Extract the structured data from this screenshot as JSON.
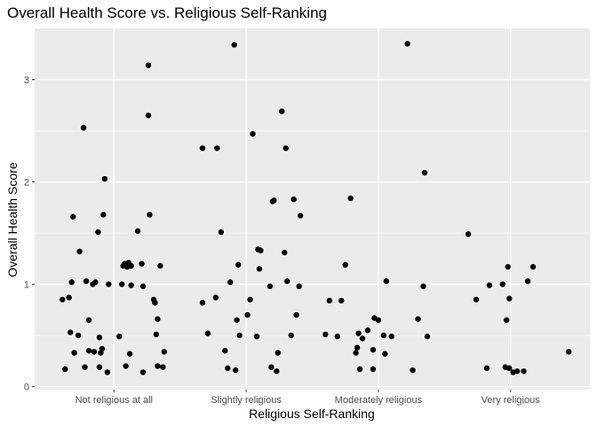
{
  "chart_data": {
    "type": "scatter",
    "title": "Overall Health Score vs. Religious Self-Ranking",
    "xlabel": "Religious Self-Ranking",
    "ylabel": "Overall Health Score",
    "categories": [
      "Not religious at all",
      "Slightly religious",
      "Moderately religious",
      "Very religious"
    ],
    "yticks": [
      0,
      1,
      2,
      3
    ],
    "ytick_labels": [
      "0",
      "1",
      "2",
      "3"
    ],
    "ylim": [
      -0.03,
      3.5
    ],
    "xlim": [
      0.4,
      4.6
    ],
    "grid": true,
    "background": "#ebebeb",
    "grid_color": "#ffffff",
    "point_color": "#000000",
    "points": [
      {
        "x": 0.61,
        "y": 0.85
      },
      {
        "x": 0.63,
        "y": 0.17
      },
      {
        "x": 0.66,
        "y": 0.87
      },
      {
        "x": 0.67,
        "y": 0.53
      },
      {
        "x": 0.68,
        "y": 1.02
      },
      {
        "x": 0.69,
        "y": 1.66
      },
      {
        "x": 0.7,
        "y": 0.33
      },
      {
        "x": 0.73,
        "y": 0.5
      },
      {
        "x": 0.74,
        "y": 1.32
      },
      {
        "x": 0.77,
        "y": 2.53
      },
      {
        "x": 0.78,
        "y": 0.19
      },
      {
        "x": 0.79,
        "y": 1.03
      },
      {
        "x": 0.81,
        "y": 0.35
      },
      {
        "x": 0.81,
        "y": 0.65
      },
      {
        "x": 0.84,
        "y": 1.0
      },
      {
        "x": 0.85,
        "y": 0.34
      },
      {
        "x": 0.86,
        "y": 1.02
      },
      {
        "x": 0.88,
        "y": 1.51
      },
      {
        "x": 0.89,
        "y": 0.48
      },
      {
        "x": 0.89,
        "y": 0.19
      },
      {
        "x": 0.9,
        "y": 0.33
      },
      {
        "x": 0.91,
        "y": 0.37
      },
      {
        "x": 0.92,
        "y": 1.68
      },
      {
        "x": 0.93,
        "y": 2.03
      },
      {
        "x": 0.95,
        "y": 0.14
      },
      {
        "x": 0.96,
        "y": 1.0
      },
      {
        "x": 1.04,
        "y": 0.49
      },
      {
        "x": 1.06,
        "y": 1.0
      },
      {
        "x": 1.07,
        "y": 1.18
      },
      {
        "x": 1.08,
        "y": 1.2
      },
      {
        "x": 1.09,
        "y": 0.2
      },
      {
        "x": 1.1,
        "y": 1.17
      },
      {
        "x": 1.11,
        "y": 1.21
      },
      {
        "x": 1.12,
        "y": 0.32
      },
      {
        "x": 1.13,
        "y": 0.99
      },
      {
        "x": 1.13,
        "y": 1.18
      },
      {
        "x": 1.18,
        "y": 1.52
      },
      {
        "x": 1.21,
        "y": 1.2
      },
      {
        "x": 1.22,
        "y": 0.98
      },
      {
        "x": 1.22,
        "y": 0.14
      },
      {
        "x": 1.26,
        "y": 3.14
      },
      {
        "x": 1.26,
        "y": 2.65
      },
      {
        "x": 1.27,
        "y": 1.68
      },
      {
        "x": 1.3,
        "y": 0.85
      },
      {
        "x": 1.31,
        "y": 0.82
      },
      {
        "x": 1.32,
        "y": 0.51
      },
      {
        "x": 1.33,
        "y": 0.66
      },
      {
        "x": 1.33,
        "y": 0.2
      },
      {
        "x": 1.35,
        "y": 1.18
      },
      {
        "x": 1.37,
        "y": 0.19
      },
      {
        "x": 1.38,
        "y": 0.34
      },
      {
        "x": 1.67,
        "y": 2.33
      },
      {
        "x": 1.67,
        "y": 0.82
      },
      {
        "x": 1.71,
        "y": 0.52
      },
      {
        "x": 1.77,
        "y": 0.87
      },
      {
        "x": 1.78,
        "y": 2.33
      },
      {
        "x": 1.81,
        "y": 1.51
      },
      {
        "x": 1.84,
        "y": 0.35
      },
      {
        "x": 1.86,
        "y": 0.18
      },
      {
        "x": 1.88,
        "y": 1.02
      },
      {
        "x": 1.91,
        "y": 3.34
      },
      {
        "x": 1.92,
        "y": 0.16
      },
      {
        "x": 1.93,
        "y": 0.65
      },
      {
        "x": 1.94,
        "y": 1.19
      },
      {
        "x": 1.95,
        "y": 0.5
      },
      {
        "x": 2.01,
        "y": 0.7
      },
      {
        "x": 2.03,
        "y": 0.85
      },
      {
        "x": 2.05,
        "y": 2.47
      },
      {
        "x": 2.08,
        "y": 0.49
      },
      {
        "x": 2.09,
        "y": 1.34
      },
      {
        "x": 2.1,
        "y": 1.15
      },
      {
        "x": 2.11,
        "y": 1.33
      },
      {
        "x": 2.18,
        "y": 0.98
      },
      {
        "x": 2.19,
        "y": 0.19
      },
      {
        "x": 2.2,
        "y": 1.81
      },
      {
        "x": 2.21,
        "y": 1.82
      },
      {
        "x": 2.23,
        "y": 0.15
      },
      {
        "x": 2.24,
        "y": 0.33
      },
      {
        "x": 2.27,
        "y": 2.69
      },
      {
        "x": 2.29,
        "y": 1.31
      },
      {
        "x": 2.3,
        "y": 2.33
      },
      {
        "x": 2.31,
        "y": 1.03
      },
      {
        "x": 2.34,
        "y": 0.5
      },
      {
        "x": 2.36,
        "y": 1.83
      },
      {
        "x": 2.38,
        "y": 0.7
      },
      {
        "x": 2.4,
        "y": 0.98
      },
      {
        "x": 2.41,
        "y": 1.67
      },
      {
        "x": 2.6,
        "y": 0.51
      },
      {
        "x": 2.63,
        "y": 0.84
      },
      {
        "x": 2.69,
        "y": 0.49
      },
      {
        "x": 2.72,
        "y": 0.84
      },
      {
        "x": 2.75,
        "y": 1.19
      },
      {
        "x": 2.79,
        "y": 1.84
      },
      {
        "x": 2.83,
        "y": 0.33
      },
      {
        "x": 2.84,
        "y": 0.38
      },
      {
        "x": 2.85,
        "y": 0.52
      },
      {
        "x": 2.86,
        "y": 0.17
      },
      {
        "x": 2.88,
        "y": 0.47
      },
      {
        "x": 2.92,
        "y": 0.55
      },
      {
        "x": 2.96,
        "y": 0.36
      },
      {
        "x": 2.96,
        "y": 0.17
      },
      {
        "x": 2.97,
        "y": 0.67
      },
      {
        "x": 3.0,
        "y": 0.65
      },
      {
        "x": 3.04,
        "y": 0.5
      },
      {
        "x": 3.05,
        "y": 0.32
      },
      {
        "x": 3.06,
        "y": 1.03
      },
      {
        "x": 3.1,
        "y": 0.49
      },
      {
        "x": 3.22,
        "y": 3.35
      },
      {
        "x": 3.26,
        "y": 0.16
      },
      {
        "x": 3.3,
        "y": 0.66
      },
      {
        "x": 3.34,
        "y": 0.98
      },
      {
        "x": 3.35,
        "y": 2.09
      },
      {
        "x": 3.37,
        "y": 0.49
      },
      {
        "x": 3.68,
        "y": 1.49
      },
      {
        "x": 3.74,
        "y": 0.85
      },
      {
        "x": 3.82,
        "y": 0.18
      },
      {
        "x": 3.84,
        "y": 0.99
      },
      {
        "x": 3.94,
        "y": 1.0
      },
      {
        "x": 3.96,
        "y": 0.19
      },
      {
        "x": 3.97,
        "y": 0.65
      },
      {
        "x": 3.98,
        "y": 1.17
      },
      {
        "x": 3.99,
        "y": 0.86
      },
      {
        "x": 3.99,
        "y": 0.18
      },
      {
        "x": 4.02,
        "y": 0.14
      },
      {
        "x": 4.05,
        "y": 0.15
      },
      {
        "x": 4.1,
        "y": 0.15
      },
      {
        "x": 4.13,
        "y": 1.03
      },
      {
        "x": 4.17,
        "y": 1.17
      },
      {
        "x": 4.44,
        "y": 0.34
      }
    ]
  }
}
